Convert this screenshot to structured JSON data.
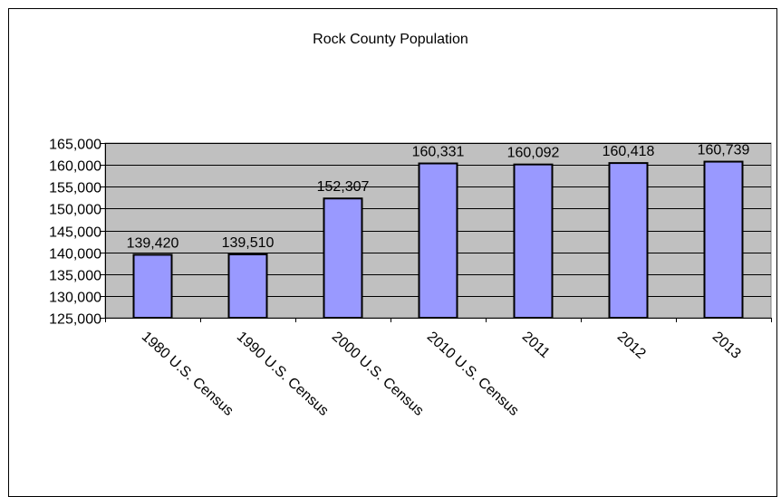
{
  "chart_data": {
    "type": "bar",
    "title": "Rock County Population",
    "categories": [
      "1980 U.S. Census",
      "1990 U.S. Census",
      "2000 U.S. Census",
      "2010 U.S. Census",
      "2011",
      "2012",
      "2013"
    ],
    "values": [
      139420,
      139510,
      152307,
      160331,
      160092,
      160418,
      160739
    ],
    "data_labels": [
      "139,420",
      "139,510",
      "152,307",
      "160,331",
      "160,092",
      "160,418",
      "160,739"
    ],
    "y_ticks": [
      "125,000",
      "130,000",
      "135,000",
      "140,000",
      "145,000",
      "150,000",
      "155,000",
      "160,000",
      "165,000"
    ],
    "ylim": [
      125000,
      165000
    ],
    "grid": true,
    "legend": "none",
    "colors": {
      "bar_fill": "#9999ff",
      "bar_stroke": "#000000",
      "plot_bg": "#c0c0c0"
    }
  }
}
